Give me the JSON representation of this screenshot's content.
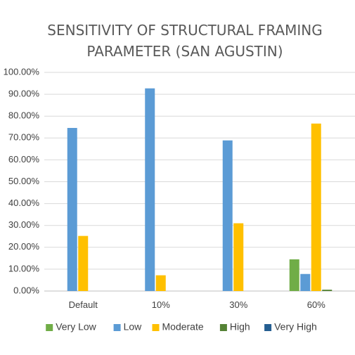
{
  "chart_data": {
    "type": "bar",
    "title_lines": [
      "SENSITIVITY OF STRUCTURAL FRAMING",
      "PARAMETER (SAN AGUSTIN)"
    ],
    "categories": [
      "Default",
      "10%",
      "30%",
      "60%"
    ],
    "series": [
      {
        "name": "Very Low",
        "color": "#70ad47",
        "values": [
          0,
          0,
          0,
          14.5
        ]
      },
      {
        "name": "Low",
        "color": "#5b9bd5",
        "values": [
          74.6,
          92.7,
          68.9,
          7.8
        ]
      },
      {
        "name": "Moderate",
        "color": "#ffc000",
        "values": [
          25.2,
          7.2,
          31.0,
          76.6
        ]
      },
      {
        "name": "High",
        "color": "#548235",
        "values": [
          0,
          0,
          0,
          0.6
        ]
      },
      {
        "name": "Very High",
        "color": "#255e91",
        "values": [
          0,
          0,
          0,
          0
        ]
      }
    ],
    "ylim": [
      0,
      100
    ],
    "yticks": [
      "0.00%",
      "10.00%",
      "20.00%",
      "30.00%",
      "40.00%",
      "50.00%",
      "60.00%",
      "70.00%",
      "80.00%",
      "90.00%",
      "100.00%"
    ],
    "grid": true,
    "legend_position": "bottom"
  }
}
